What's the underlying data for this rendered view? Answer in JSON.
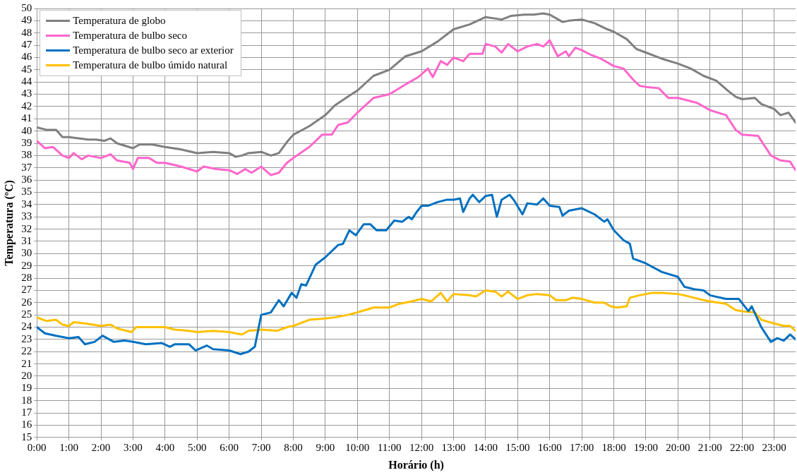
{
  "chart_data": {
    "type": "line",
    "xlabel": "Horário (h)",
    "ylabel": "Temperatura (ºC)",
    "xlim": [
      0,
      23.67
    ],
    "xticks": [
      {
        "value": 0,
        "label": "0:00"
      },
      {
        "value": 1,
        "label": "1:00"
      },
      {
        "value": 2,
        "label": "2:00"
      },
      {
        "value": 3,
        "label": "3:00"
      },
      {
        "value": 4,
        "label": "4:00"
      },
      {
        "value": 5,
        "label": "5:00"
      },
      {
        "value": 6,
        "label": "6:00"
      },
      {
        "value": 7,
        "label": "7:00"
      },
      {
        "value": 8,
        "label": "8:00"
      },
      {
        "value": 9,
        "label": "9:00"
      },
      {
        "value": 10,
        "label": "10:00"
      },
      {
        "value": 11,
        "label": "11:00"
      },
      {
        "value": 12,
        "label": "12:00"
      },
      {
        "value": 13,
        "label": "13:00"
      },
      {
        "value": 14,
        "label": "14:00"
      },
      {
        "value": 15,
        "label": "15:00"
      },
      {
        "value": 16,
        "label": "16:00"
      },
      {
        "value": 17,
        "label": "17:00"
      },
      {
        "value": 18,
        "label": "18:00"
      },
      {
        "value": 19,
        "label": "19:00"
      },
      {
        "value": 20,
        "label": "20:00"
      },
      {
        "value": 21,
        "label": "21:00"
      },
      {
        "value": 22,
        "label": "22:00"
      },
      {
        "value": 23,
        "label": "23:00"
      }
    ],
    "ylim": [
      15,
      50
    ],
    "yticks": [
      15,
      16,
      17,
      18,
      19,
      20,
      21,
      22,
      23,
      24,
      25,
      26,
      27,
      28,
      29,
      30,
      31,
      32,
      33,
      34,
      35,
      36,
      37,
      38,
      39,
      40,
      41,
      42,
      43,
      44,
      45,
      46,
      47,
      48,
      49,
      50
    ],
    "grid": true,
    "legend": "top left",
    "marker": "none",
    "line_style": "solid",
    "series": [
      {
        "name": "Temperatura de globo",
        "color": "#7f7f7f",
        "x": [
          0,
          0.3,
          0.6,
          0.8,
          1,
          1.3,
          1.6,
          1.85,
          2.1,
          2.3,
          2.5,
          3,
          3.2,
          3.6,
          4,
          4.5,
          5,
          5.5,
          6,
          6.2,
          6.4,
          6.6,
          7,
          7.3,
          7.55,
          7.8,
          8,
          8.5,
          9,
          9.3,
          9.7,
          10,
          10.5,
          11,
          11.5,
          12,
          12.5,
          13,
          13.5,
          14,
          14.5,
          14.8,
          15.2,
          15.5,
          15.8,
          16,
          16.4,
          16.6,
          17,
          17.4,
          17.8,
          18,
          18.4,
          18.7,
          19,
          19.5,
          20,
          20.4,
          20.8,
          21.2,
          21.6,
          21.8,
          22,
          22.4,
          22.6,
          23,
          23.2,
          23.45,
          23.67
        ],
        "values": [
          40.3,
          40.1,
          40.1,
          39.5,
          39.5,
          39.4,
          39.3,
          39.3,
          39.2,
          39.4,
          39,
          38.6,
          38.9,
          38.9,
          38.7,
          38.5,
          38.2,
          38.3,
          38.2,
          37.9,
          38,
          38.2,
          38.3,
          38,
          38.2,
          39.1,
          39.7,
          40.4,
          41.3,
          42.1,
          42.8,
          43.3,
          44.5,
          45,
          46.1,
          46.5,
          47.3,
          48.3,
          48.7,
          49.3,
          49.1,
          49.4,
          49.5,
          49.5,
          49.6,
          49.5,
          48.9,
          49,
          49.1,
          48.8,
          48.3,
          48.1,
          47.5,
          46.7,
          46.4,
          45.9,
          45.5,
          45.1,
          44.5,
          44.1,
          43.2,
          42.8,
          42.6,
          42.7,
          42.2,
          41.8,
          41.3,
          41.5,
          40.7
        ]
      },
      {
        "name": "Temperatura de bulbo seco",
        "color": "#ff66cc",
        "x": [
          0,
          0.25,
          0.5,
          0.8,
          1,
          1.15,
          1.4,
          1.6,
          2,
          2.3,
          2.5,
          2.9,
          3,
          3.15,
          3.5,
          3.75,
          4,
          4.5,
          5,
          5.2,
          5.6,
          6,
          6.25,
          6.5,
          6.7,
          7,
          7.3,
          7.55,
          7.8,
          8,
          8.5,
          8.9,
          9.2,
          9.4,
          9.7,
          10,
          10.5,
          11,
          11.5,
          11.9,
          12.2,
          12.35,
          12.6,
          12.8,
          13,
          13.3,
          13.5,
          13.9,
          14,
          14.3,
          14.5,
          14.7,
          15,
          15.3,
          15.6,
          15.8,
          16,
          16.25,
          16.5,
          16.6,
          16.8,
          17,
          17.3,
          17.6,
          18,
          18.3,
          18.6,
          18.8,
          19,
          19.4,
          19.7,
          20,
          20.3,
          20.6,
          21,
          21.5,
          21.8,
          22,
          22.5,
          22.9,
          23.2,
          23.5,
          23.67
        ],
        "values": [
          39.2,
          38.6,
          38.7,
          38,
          37.8,
          38.2,
          37.7,
          38,
          37.8,
          38.1,
          37.6,
          37.4,
          36.9,
          37.8,
          37.8,
          37.4,
          37.4,
          37.1,
          36.7,
          37.1,
          36.9,
          36.8,
          36.5,
          36.9,
          36.6,
          37.1,
          36.4,
          36.6,
          37.4,
          37.8,
          38.7,
          39.7,
          39.7,
          40.5,
          40.7,
          41.5,
          42.7,
          43,
          43.8,
          44.4,
          45.1,
          44.4,
          45.7,
          45.4,
          46,
          45.7,
          46.3,
          46.3,
          47.1,
          46.9,
          46.4,
          47.1,
          46.5,
          46.9,
          47.1,
          46.9,
          47.4,
          46.1,
          46.5,
          46.1,
          46.8,
          46.6,
          46.2,
          45.9,
          45.3,
          45.1,
          44.2,
          43.7,
          43.6,
          43.5,
          42.7,
          42.7,
          42.5,
          42.3,
          41.7,
          41.3,
          40.1,
          39.7,
          39.6,
          38,
          37.6,
          37.5,
          36.8
        ]
      },
      {
        "name": "Temperatura de bulbo seco ar exterior",
        "color": "#0070c0",
        "x": [
          0,
          0.25,
          0.6,
          1,
          1.3,
          1.5,
          1.8,
          2.05,
          2.4,
          2.75,
          3,
          3.4,
          3.9,
          4.15,
          4.3,
          4.75,
          4.95,
          5.3,
          5.5,
          6,
          6.35,
          6.6,
          6.8,
          7,
          7.3,
          7.55,
          7.7,
          7.95,
          8.1,
          8.25,
          8.4,
          8.7,
          9,
          9.4,
          9.55,
          9.75,
          9.95,
          10.2,
          10.4,
          10.6,
          10.9,
          11.15,
          11.4,
          11.6,
          11.7,
          11.85,
          12,
          12.2,
          12.5,
          12.8,
          13,
          13.2,
          13.3,
          13.5,
          13.6,
          13.8,
          14,
          14.2,
          14.35,
          14.5,
          14.75,
          14.9,
          15.15,
          15.3,
          15.6,
          15.8,
          16,
          16.3,
          16.4,
          16.6,
          17,
          17.4,
          17.7,
          17.8,
          18,
          18.3,
          18.5,
          18.6,
          19,
          19.5,
          20,
          20.2,
          20.5,
          20.8,
          21,
          21.5,
          21.9,
          22.2,
          22.3,
          22.6,
          22.9,
          23.1,
          23.3,
          23.5,
          23.67
        ],
        "values": [
          24,
          23.5,
          23.3,
          23.1,
          23.2,
          22.6,
          22.8,
          23.3,
          22.8,
          22.9,
          22.8,
          22.6,
          22.7,
          22.4,
          22.6,
          22.6,
          22.1,
          22.5,
          22.2,
          22.1,
          21.8,
          22,
          22.4,
          25,
          25.2,
          26.2,
          25.7,
          26.8,
          26.4,
          27.5,
          27.4,
          29.1,
          29.7,
          30.7,
          30.8,
          31.9,
          31.5,
          32.4,
          32.4,
          31.9,
          31.9,
          32.7,
          32.6,
          33,
          32.8,
          33.4,
          33.9,
          33.9,
          34.2,
          34.4,
          34.4,
          34.5,
          33.4,
          34.5,
          34.8,
          34.2,
          34.7,
          34.8,
          33,
          34.4,
          34.8,
          34.3,
          33.2,
          34.1,
          34,
          34.5,
          33.9,
          33.8,
          33.1,
          33.5,
          33.7,
          33.2,
          32.6,
          32.8,
          31.9,
          31.1,
          30.8,
          29.6,
          29.2,
          28.5,
          28.1,
          27.3,
          27.1,
          27,
          26.6,
          26.3,
          26.3,
          25.3,
          25.7,
          24,
          22.8,
          23.1,
          22.9,
          23.4,
          23
        ]
      },
      {
        "name": "Temperatura de bulbo úmido natural",
        "color": "#ffc000",
        "x": [
          0,
          0.3,
          0.6,
          0.8,
          1,
          1.15,
          1.5,
          2,
          2.3,
          2.5,
          2.95,
          3.1,
          3.5,
          4,
          4.3,
          4.75,
          5,
          5.5,
          6,
          6.2,
          6.4,
          6.6,
          7,
          7.5,
          7.8,
          8,
          8.2,
          8.5,
          9,
          9.3,
          9.7,
          10,
          10.5,
          11,
          11.3,
          11.7,
          12,
          12.3,
          12.6,
          12.8,
          13,
          13.5,
          13.7,
          14,
          14.3,
          14.5,
          14.7,
          15,
          15.3,
          15.6,
          16,
          16.2,
          16.5,
          16.7,
          17,
          17.4,
          17.7,
          17.9,
          18.1,
          18.4,
          18.5,
          18.8,
          19.2,
          19.5,
          20,
          20.2,
          20.5,
          20.8,
          21,
          21.5,
          21.8,
          22,
          22.4,
          22.6,
          23,
          23.3,
          23.5,
          23.67
        ],
        "values": [
          24.8,
          24.5,
          24.6,
          24.2,
          24.1,
          24.4,
          24.3,
          24.1,
          24.2,
          23.9,
          23.6,
          24,
          24,
          24,
          23.8,
          23.7,
          23.6,
          23.7,
          23.6,
          23.5,
          23.4,
          23.7,
          23.8,
          23.7,
          24,
          24.1,
          24.3,
          24.6,
          24.7,
          24.8,
          25,
          25.2,
          25.6,
          25.6,
          25.9,
          26.1,
          26.3,
          26.1,
          26.8,
          26.1,
          26.7,
          26.6,
          26.5,
          27,
          26.9,
          26.5,
          26.9,
          26.3,
          26.6,
          26.7,
          26.6,
          26.2,
          26.2,
          26.4,
          26.3,
          26,
          26,
          25.7,
          25.6,
          25.7,
          26.4,
          26.6,
          26.8,
          26.8,
          26.7,
          26.6,
          26.4,
          26.2,
          26.1,
          25.9,
          25.4,
          25.3,
          25.2,
          24.6,
          24.3,
          24.1,
          24.1,
          23.7
        ]
      }
    ]
  }
}
